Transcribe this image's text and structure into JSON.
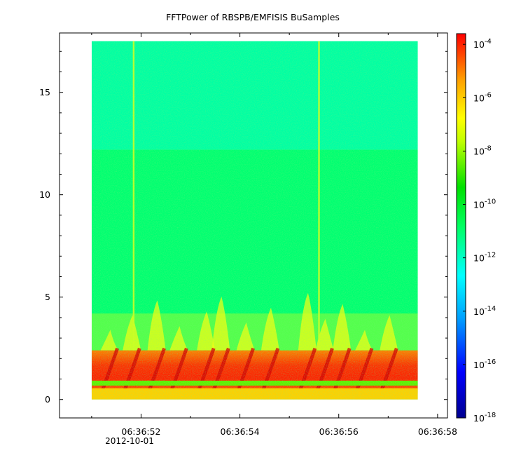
{
  "chart_data": {
    "type": "heatmap",
    "title": "FFTPower of RBSPB/EMFISIS  BuSamples",
    "xlabel": "",
    "ylabel": "",
    "x_ticks": [
      "06:36:52",
      "06:36:54",
      "06:36:56",
      "06:36:58"
    ],
    "x_sub_label": "2012-10-01",
    "x_range_seconds": [
      50.35,
      58.2
    ],
    "y_ticks": [
      0,
      5,
      10,
      15
    ],
    "y_range": [
      -0.9,
      17.9
    ],
    "data_extent": {
      "t_start": 51.0,
      "t_end": 57.6,
      "f_min": 0.0,
      "f_max": 17.5
    },
    "colorbar": {
      "scale": "log",
      "ticks": [
        {
          "base": "10",
          "exp": "-4"
        },
        {
          "base": "10",
          "exp": "-6"
        },
        {
          "base": "10",
          "exp": "-8"
        },
        {
          "base": "10",
          "exp": "-10"
        },
        {
          "base": "10",
          "exp": "-12"
        },
        {
          "base": "10",
          "exp": "-14"
        },
        {
          "base": "10",
          "exp": "-16"
        },
        {
          "base": "10",
          "exp": "-18"
        }
      ],
      "range_log10": [
        -18,
        -3.6
      ]
    },
    "features": {
      "background_low_band": {
        "f_range": [
          0,
          12.2
        ],
        "log10_power": -11.0
      },
      "background_high_band": {
        "f_range": [
          12.2,
          17.5
        ],
        "log10_power": -11.6
      },
      "enhanced_band": {
        "f_range": [
          0.3,
          2.4
        ],
        "log10_power": -6.5
      },
      "bright_line": {
        "f": 0.8,
        "log10_power": -8.5
      },
      "vertical_spikes_s": [
        51.85,
        55.6
      ],
      "chorus_rising_tones_s": [
        51.35,
        51.8,
        52.3,
        52.75,
        53.3,
        53.6,
        54.1,
        54.6,
        55.35,
        55.7,
        56.05,
        56.5,
        57.0
      ]
    }
  }
}
